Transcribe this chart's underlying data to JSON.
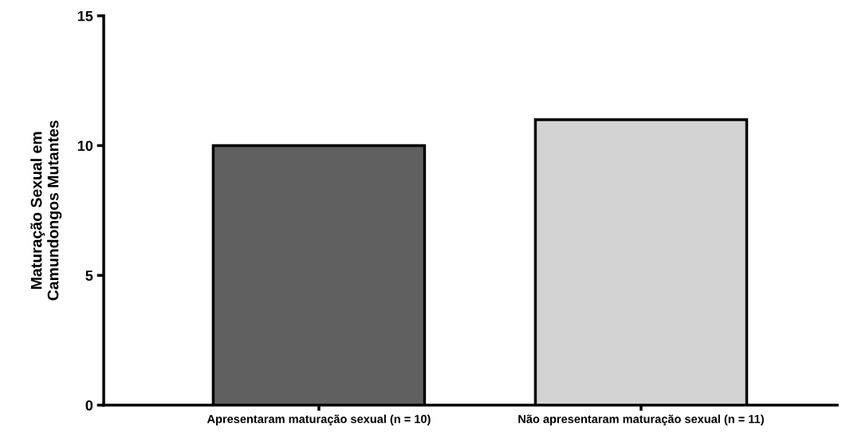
{
  "chart_data": {
    "type": "bar",
    "ylabel": "Maturação Sexual em\nCamundongos Mutantes",
    "categories": [
      "Apresentaram maturação sexual (n = 10)",
      "Não apresentaram maturação sexual (n = 11)"
    ],
    "values": [
      10,
      11
    ],
    "colors": [
      "#606060",
      "#d3d3d3"
    ],
    "ylim": [
      0,
      15
    ],
    "yticks": [
      0,
      5,
      10,
      15
    ],
    "grid": false
  }
}
